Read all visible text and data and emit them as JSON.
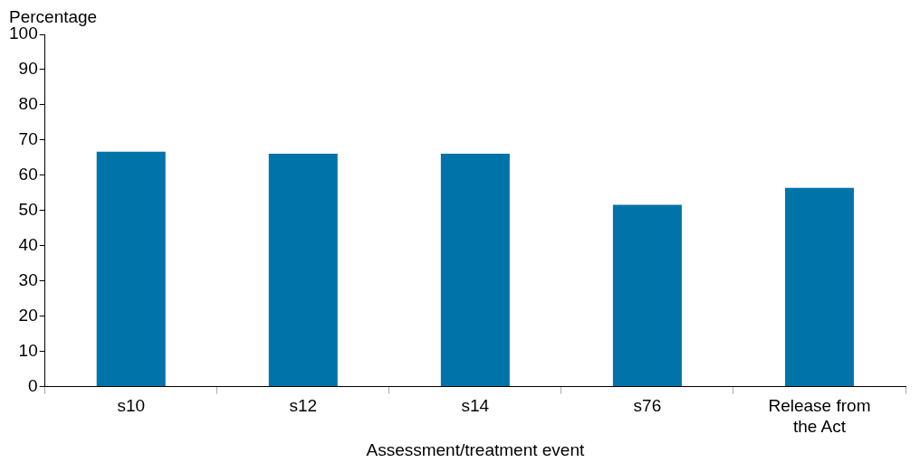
{
  "chart_data": {
    "type": "bar",
    "ylabel": "Percentage",
    "xlabel": "Assessment/treatment event",
    "categories": [
      "s10",
      "s12",
      "s14",
      "s76",
      "Release from the Act"
    ],
    "values": [
      66.7,
      66.1,
      66.1,
      51.6,
      56.4
    ],
    "color": "#0074a8",
    "ylim": [
      0,
      100
    ],
    "yticks": [
      0,
      10,
      20,
      30,
      40,
      50,
      60,
      70,
      80,
      90,
      100
    ],
    "grid": false,
    "legend": false
  }
}
